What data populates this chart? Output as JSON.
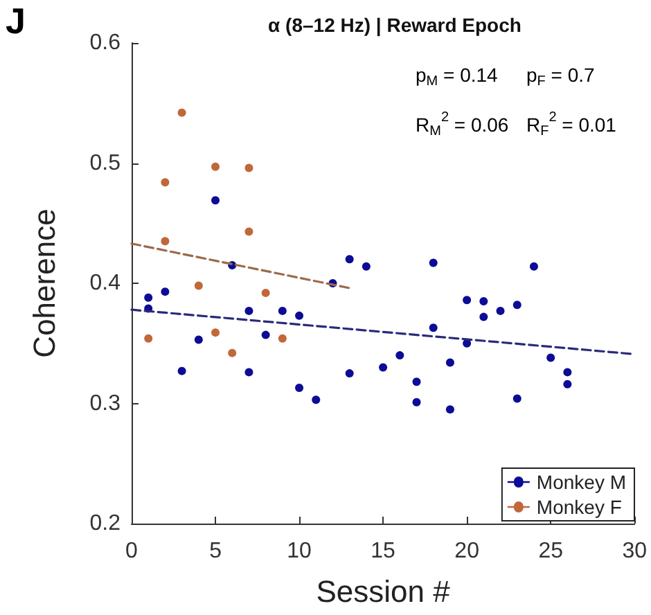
{
  "chart_data": {
    "type": "scatter",
    "title": "α (8–12 Hz) | Reward Epoch",
    "xlabel": "Session #",
    "ylabel": "Coherence",
    "annotations": [
      "J",
      "p$_{M}$ = 0.14",
      "p$_{F}$ = 0.7",
      "R$_{M}$$^{2}$ = 0.06",
      "R$_{F}$$^{2}$ = 0.01"
    ],
    "series": [
      {
        "name": "Monkey M",
        "color": "#0c0c96",
        "x": [
          1,
          1,
          2,
          3,
          4,
          5,
          6,
          7,
          7,
          8,
          9,
          10,
          10,
          11,
          12,
          13,
          13,
          14,
          15,
          16,
          17,
          17,
          18,
          18,
          19,
          19,
          20,
          20,
          21,
          21,
          22,
          23,
          23,
          24,
          25,
          26,
          26
        ],
        "values": [
          0.388,
          0.379,
          0.393,
          0.327,
          0.353,
          0.469,
          0.415,
          0.377,
          0.326,
          0.357,
          0.377,
          0.373,
          0.313,
          0.303,
          0.4,
          0.42,
          0.325,
          0.414,
          0.33,
          0.34,
          0.318,
          0.301,
          0.417,
          0.363,
          0.334,
          0.295,
          0.386,
          0.35,
          0.385,
          0.372,
          0.377,
          0.382,
          0.304,
          0.414,
          0.338,
          0.326,
          0.316
        ]
      },
      {
        "name": "Monkey F",
        "color": "#c0683a",
        "x": [
          1,
          2,
          2,
          3,
          4,
          5,
          5,
          6,
          7,
          7,
          8,
          9
        ],
        "values": [
          0.354,
          0.484,
          0.435,
          0.542,
          0.398,
          0.497,
          0.359,
          0.342,
          0.496,
          0.443,
          0.392,
          0.354
        ]
      },
      {
        "type": "line",
        "color": "#2a2a7a",
        "line_style": "dashed",
        "marker": "none",
        "x": [
          0,
          30
        ],
        "values": [
          0.378,
          0.341
        ]
      },
      {
        "type": "line",
        "color": "#9a6a4a",
        "line_style": "dashed",
        "marker": "none",
        "x": [
          0,
          13
        ],
        "values": [
          0.433,
          0.396
        ]
      }
    ],
    "xlim": [
      0,
      30
    ],
    "xticks": [
      0,
      5,
      10,
      15,
      20,
      25,
      30
    ],
    "ylim": [
      0.2,
      0.6
    ],
    "yticks": [
      0.2,
      0.3,
      0.4,
      0.5,
      0.6
    ],
    "grid": false,
    "legend": "bottom right",
    "marker": "circle"
  }
}
